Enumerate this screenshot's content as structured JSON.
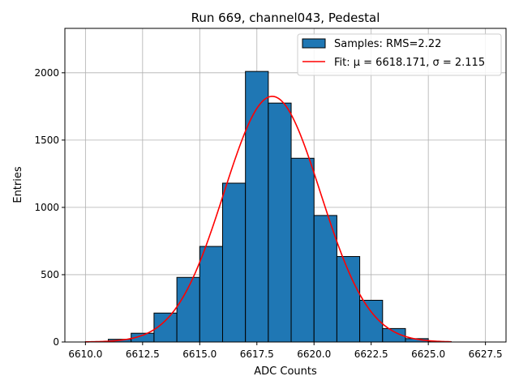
{
  "chart_data": {
    "type": "bar",
    "title": "Run 669, channel043, Pedestal",
    "xlabel": "ADC Counts",
    "ylabel": "Entries",
    "xlim": [
      6609.1,
      6628.4
    ],
    "ylim": [
      0,
      2330
    ],
    "xticks": [
      6610.0,
      6612.5,
      6615.0,
      6617.5,
      6620.0,
      6622.5,
      6625.0,
      6627.5
    ],
    "xtick_labels": [
      "6610.0",
      "6612.5",
      "6615.0",
      "6617.5",
      "6620.0",
      "6622.5",
      "6625.0",
      "6627.5"
    ],
    "yticks": [
      0,
      500,
      1000,
      1500,
      2000
    ],
    "ytick_labels": [
      "0",
      "500",
      "1000",
      "1500",
      "2000"
    ],
    "grid": true,
    "legend_position": "top-right",
    "bin_edges": [
      6610,
      6611,
      6612,
      6613,
      6614,
      6615,
      6616,
      6617,
      6618,
      6619,
      6620,
      6621,
      6622,
      6623,
      6624,
      6625,
      6626
    ],
    "series": [
      {
        "name": "Samples: RMS=2.22",
        "kind": "histogram",
        "color": "#1f77b4",
        "edgecolor": "#000000",
        "values": [
          3,
          20,
          65,
          215,
          480,
          710,
          1180,
          2010,
          1775,
          1365,
          940,
          635,
          310,
          100,
          25,
          3
        ]
      },
      {
        "name": "Fit: μ = 6618.171, σ = 2.115",
        "kind": "line",
        "color": "#ff0000",
        "function": "gaussian",
        "mu": 6618.171,
        "sigma": 2.115,
        "amplitude": 1825,
        "x_range": [
          6610,
          6626
        ]
      }
    ]
  }
}
